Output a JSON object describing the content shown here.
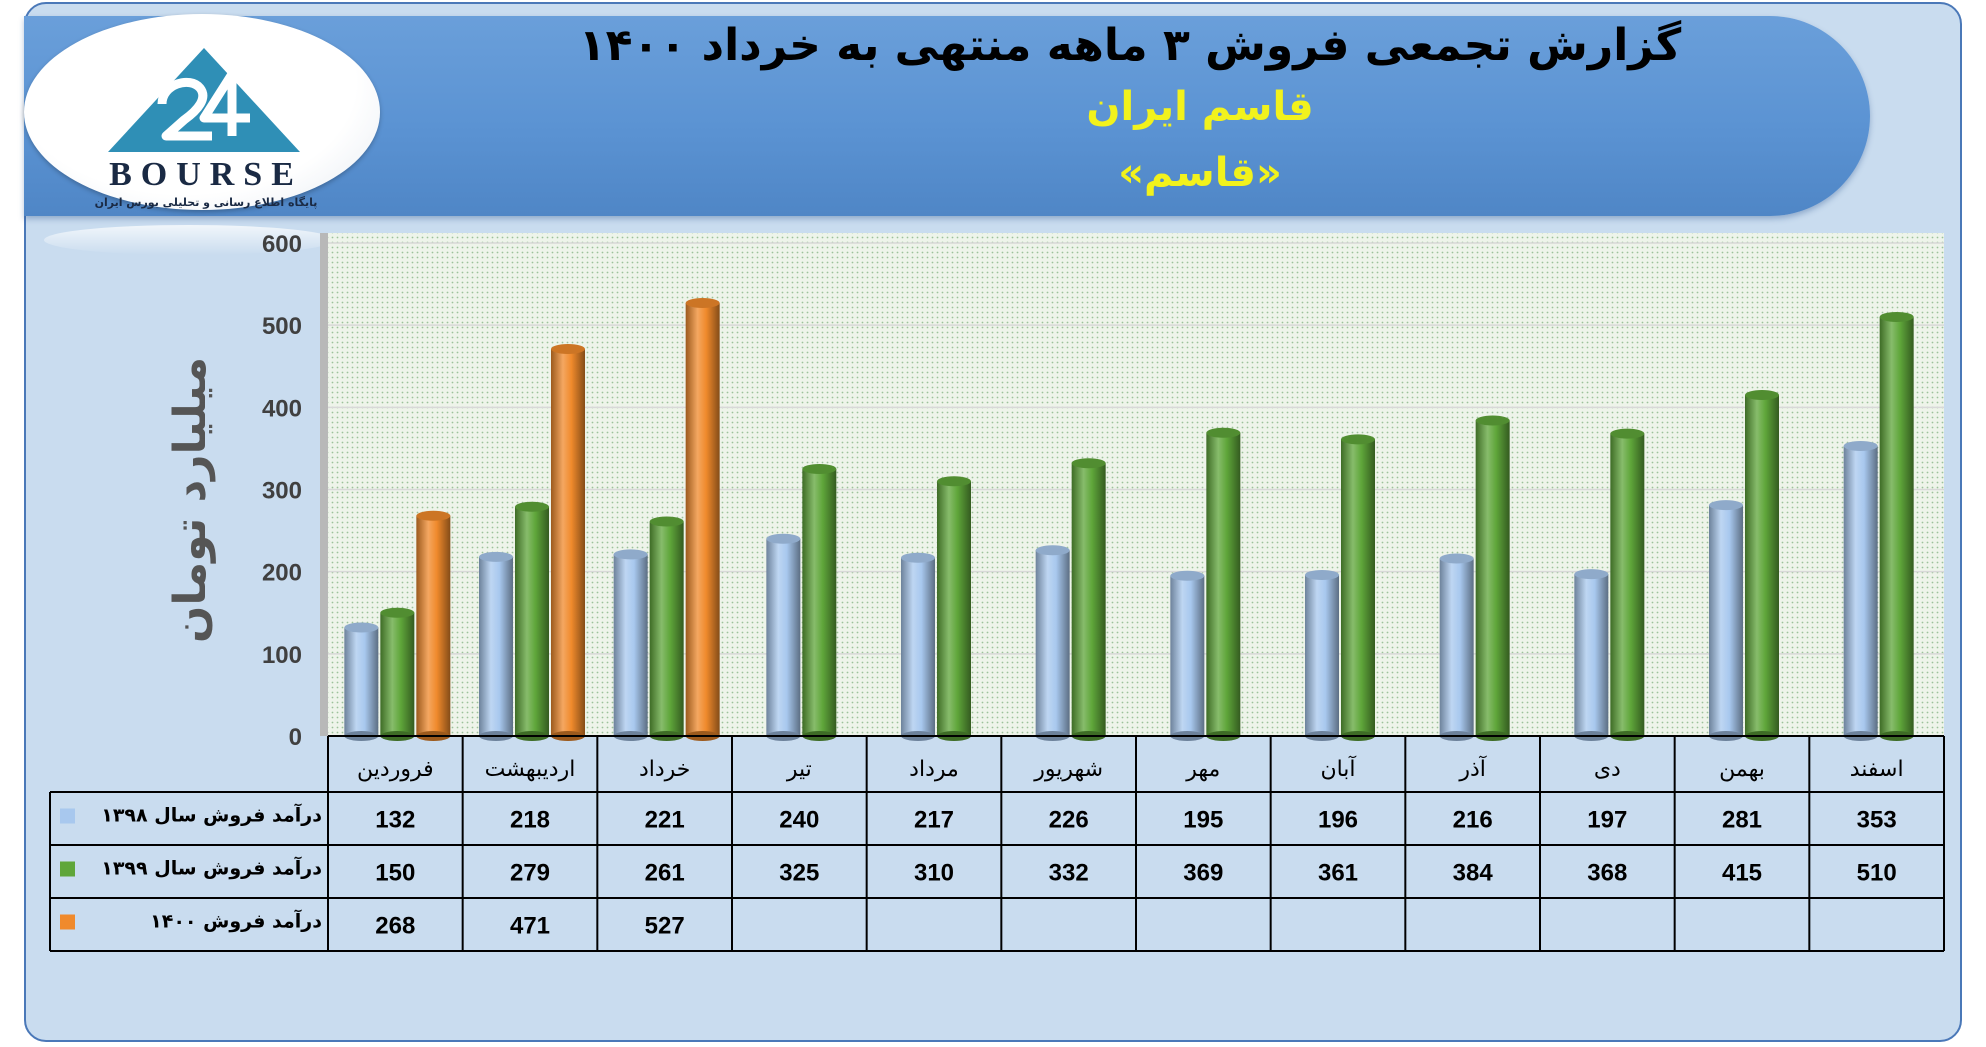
{
  "header": {
    "title": "گزارش تجمعی فروش ۳ ماهه منتهی به خرداد ۱۴۰۰",
    "company": "قاسم ایران",
    "symbol": "«قاسم»"
  },
  "logo": {
    "wordmark": "BOURSE",
    "tagline": "پایگاه اطلاع رسانی و تحلیلی بورس ایران"
  },
  "chart_data": {
    "type": "bar",
    "ylabel": "میلیارد تومان",
    "ylim": [
      0,
      600
    ],
    "yticks": [
      0,
      100,
      200,
      300,
      400,
      500,
      600
    ],
    "grid": true,
    "categories": [
      "فروردین",
      "اردیبهشت",
      "خرداد",
      "تیر",
      "مرداد",
      "شهریور",
      "مهر",
      "آبان",
      "آذر",
      "دی",
      "بهمن",
      "اسفند"
    ],
    "series": [
      {
        "name": "درآمد فروش سال ۱۳۹۸",
        "color": "#a8c8ee",
        "values": [
          132,
          218,
          221,
          240,
          217,
          226,
          195,
          196,
          216,
          197,
          281,
          353
        ]
      },
      {
        "name": "درآمد فروش سال ۱۳۹۹",
        "color": "#5fa63a",
        "values": [
          150,
          279,
          261,
          325,
          310,
          332,
          369,
          361,
          384,
          368,
          415,
          510
        ]
      },
      {
        "name": "درآمد فروش ۱۴۰۰",
        "color": "#f08a2c",
        "values": [
          268,
          471,
          527,
          null,
          null,
          null,
          null,
          null,
          null,
          null,
          null,
          null
        ]
      }
    ]
  }
}
